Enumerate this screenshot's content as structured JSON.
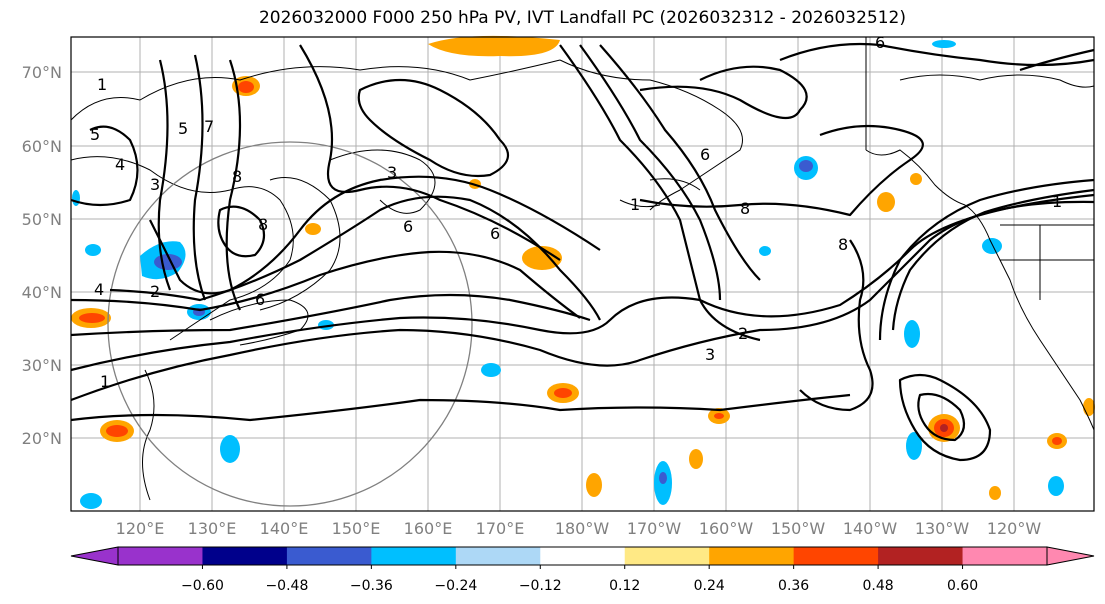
{
  "title": "2026032000 F000 250 hPa PV, IVT Landfall PC (2026032312 - 2026032512)",
  "lat_labels": [
    "70°N",
    "60°N",
    "50°N",
    "40°N",
    "30°N",
    "20°N"
  ],
  "lon_labels": [
    "120°E",
    "130°E",
    "140°E",
    "150°E",
    "160°E",
    "170°E",
    "180°W",
    "170°W",
    "160°W",
    "150°W",
    "140°W",
    "130°W",
    "120°W"
  ],
  "colorbar": {
    "colors": [
      "#9932cc",
      "#00008b",
      "#3a5bd0",
      "#00bfff",
      "#add8f6",
      "#ffffff",
      "#ffe985",
      "#ffa500",
      "#ff4500",
      "#b22222",
      "#ff88b0"
    ],
    "under_color": "#9932cc",
    "over_color": "#ff88b0",
    "tick_labels": [
      "−0.60",
      "−0.48",
      "−0.36",
      "−0.24",
      "−0.12",
      "0.12",
      "0.24",
      "0.36",
      "0.48",
      "0.60"
    ]
  },
  "contour_labels": [
    "1",
    "2",
    "3",
    "4",
    "5",
    "6",
    "7",
    "8"
  ]
}
